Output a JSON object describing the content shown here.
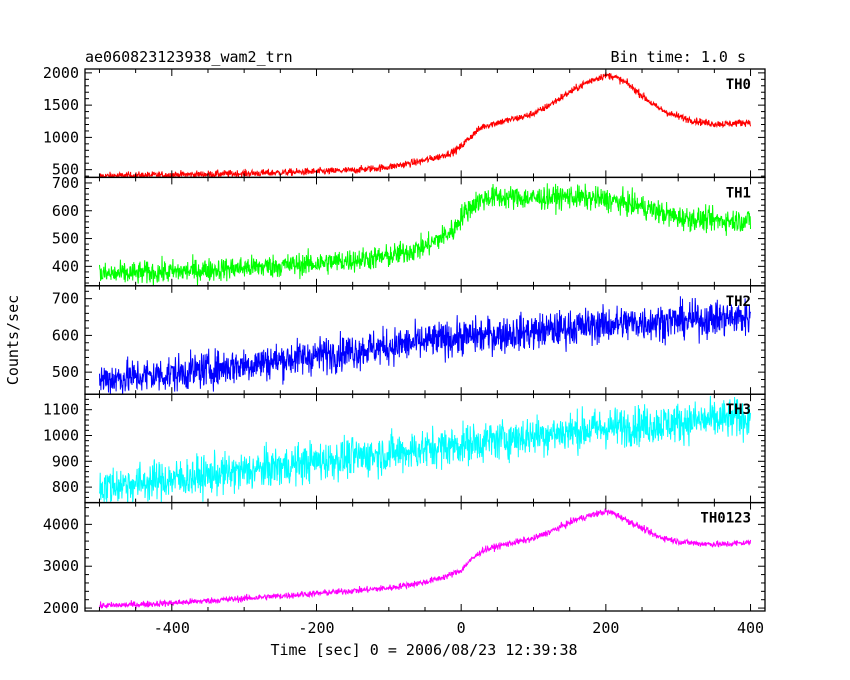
{
  "header": {
    "title": "ae060823123938_wam2_trn",
    "bin_time": "Bin time: 1.0 s"
  },
  "xlabel": "Time [sec] 0 = 2006/08/23 12:39:38",
  "ylabel": "Counts/sec",
  "chart_data": {
    "type": "line",
    "x_ticks": [
      -400,
      -200,
      0,
      200,
      400
    ],
    "xlim": [
      -520,
      420
    ],
    "data_x_range": [
      -500,
      400
    ],
    "bin_time_s": 1.0,
    "grid": false,
    "legend": "panel labels top-right",
    "panels": [
      {
        "name": "TH0",
        "color": "#ff0000",
        "ylim": [
          380,
          2060
        ],
        "yticks": [
          500,
          1000,
          1500,
          2000
        ],
        "x": [
          -500,
          -450,
          -400,
          -350,
          -300,
          -250,
          -200,
          -150,
          -100,
          -60,
          -30,
          -10,
          0,
          10,
          20,
          30,
          50,
          70,
          90,
          110,
          130,
          150,
          170,
          190,
          200,
          210,
          230,
          250,
          270,
          290,
          310,
          330,
          350,
          370,
          390,
          400
        ],
        "y": [
          400,
          410,
          420,
          430,
          440,
          455,
          470,
          490,
          540,
          620,
          700,
          780,
          860,
          980,
          1080,
          1170,
          1230,
          1280,
          1330,
          1420,
          1560,
          1700,
          1830,
          1930,
          1960,
          1950,
          1830,
          1650,
          1470,
          1360,
          1290,
          1240,
          1210,
          1210,
          1230,
          1240
        ],
        "noise": 40
      },
      {
        "name": "TH1",
        "color": "#00ff00",
        "ylim": [
          330,
          720
        ],
        "yticks": [
          400,
          500,
          600,
          700
        ],
        "x": [
          -500,
          -400,
          -300,
          -200,
          -100,
          -50,
          -10,
          0,
          20,
          40,
          100,
          150,
          200,
          250,
          280,
          300,
          350,
          400
        ],
        "y": [
          370,
          380,
          395,
          410,
          435,
          470,
          530,
          580,
          630,
          650,
          645,
          650,
          640,
          615,
          590,
          575,
          565,
          565
        ],
        "noise": 30
      },
      {
        "name": "TH2",
        "color": "#0000ff",
        "ylim": [
          440,
          735
        ],
        "yticks": [
          500,
          600,
          700
        ],
        "x": [
          -500,
          -400,
          -300,
          -200,
          -100,
          0,
          100,
          200,
          300,
          400
        ],
        "y": [
          480,
          495,
          520,
          545,
          570,
          595,
          610,
          630,
          640,
          650
        ],
        "noise": 35
      },
      {
        "name": "TH3",
        "color": "#00ffff",
        "ylim": [
          740,
          1160
        ],
        "yticks": [
          800,
          900,
          1000,
          1100
        ],
        "x": [
          -500,
          -400,
          -300,
          -200,
          -100,
          0,
          100,
          200,
          300,
          400
        ],
        "y": [
          800,
          830,
          860,
          900,
          930,
          965,
          1000,
          1030,
          1050,
          1070
        ],
        "noise": 55
      },
      {
        "name": "TH0123",
        "color": "#ff00ff",
        "ylim": [
          1930,
          4520
        ],
        "yticks": [
          2000,
          3000,
          4000
        ],
        "x": [
          -500,
          -400,
          -300,
          -200,
          -100,
          -50,
          -20,
          0,
          10,
          30,
          60,
          100,
          130,
          160,
          190,
          200,
          210,
          240,
          270,
          300,
          330,
          360,
          400
        ],
        "y": [
          2050,
          2120,
          2230,
          2350,
          2480,
          2620,
          2760,
          2900,
          3100,
          3380,
          3520,
          3660,
          3880,
          4120,
          4270,
          4300,
          4270,
          4000,
          3720,
          3590,
          3540,
          3520,
          3570
        ],
        "noise": 55
      }
    ]
  }
}
